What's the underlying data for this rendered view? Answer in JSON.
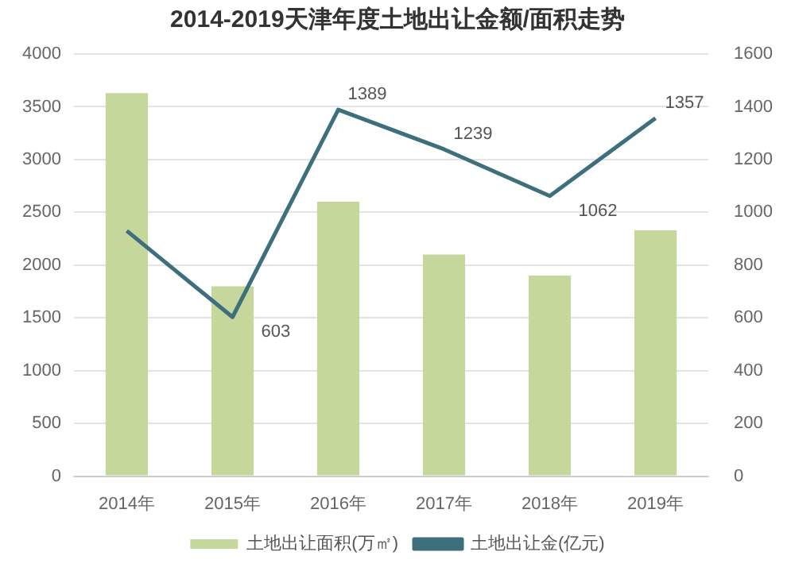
{
  "chart_data": {
    "type": "bar",
    "title": "2014-2019天津年度土地出让金额/面积走势",
    "categories": [
      "2014年",
      "2015年",
      "2016年",
      "2017年",
      "2018年",
      "2019年"
    ],
    "series": [
      {
        "name": "土地出让面积(万㎡)",
        "color": "#c5d79a",
        "values": [
          3630,
          1800,
          2600,
          2100,
          1900,
          2330
        ]
      },
      {
        "name": "土地出让金(亿元)",
        "type": "line",
        "axis": "y2",
        "color": "#3d6f7d",
        "values": [
          930,
          603,
          1389,
          1239,
          1062,
          1357
        ],
        "value_labels": [
          null,
          "603",
          "1389",
          "1239",
          "1062",
          "1357"
        ]
      }
    ],
    "ylim": [
      0,
      4000
    ],
    "yticks": [
      0,
      500,
      1000,
      1500,
      2000,
      2500,
      3000,
      3500,
      4000
    ],
    "y2lim": [
      0,
      1600
    ],
    "y2ticks": [
      0,
      200,
      400,
      600,
      800,
      1000,
      1200,
      1400,
      1600
    ],
    "grid": "y",
    "legend": "bottom",
    "marker": "none"
  }
}
